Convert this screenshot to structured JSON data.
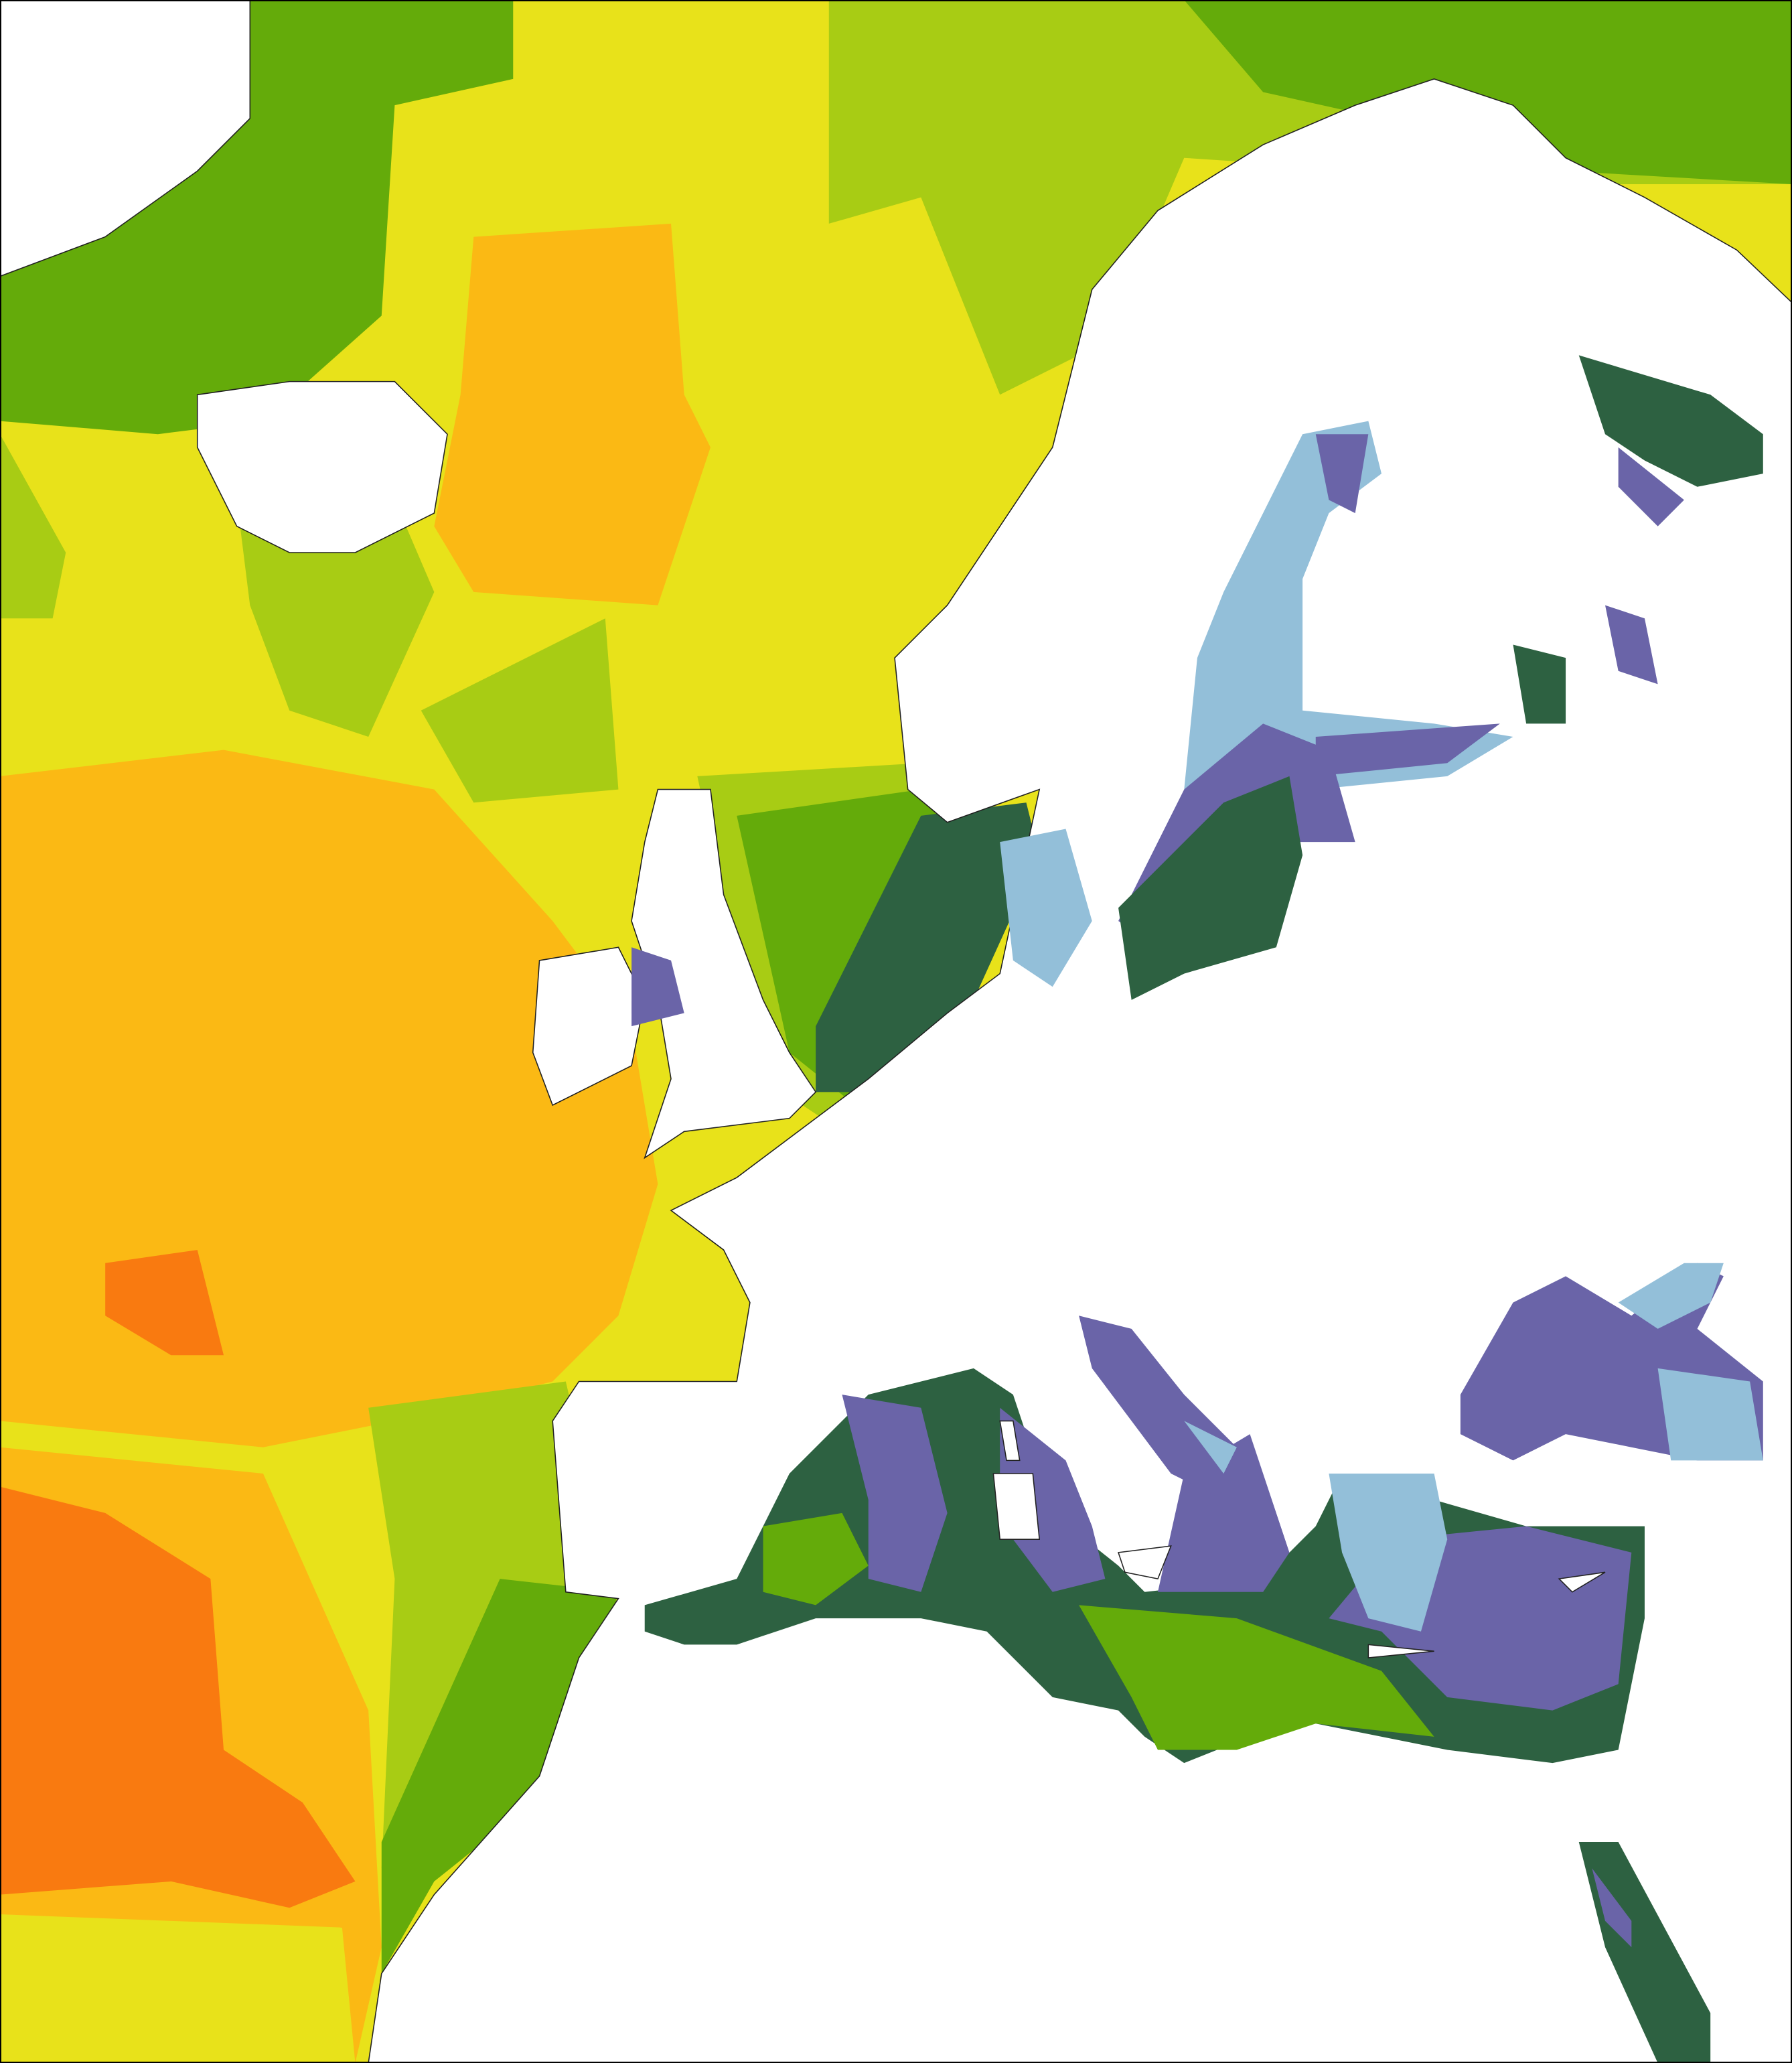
{
  "map": {
    "palette": [
      "#e8e21a",
      "#64ab0a",
      "#a8cc14",
      "#fbb914",
      "#f97a10",
      "#2d6141",
      "#6a64a8",
      "#93bfd9",
      "#ffffff"
    ]
  }
}
